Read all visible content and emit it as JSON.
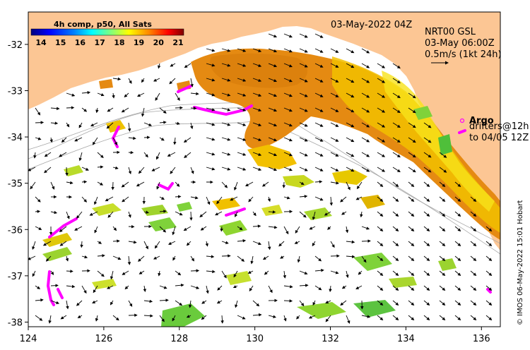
{
  "map": {
    "date_label": "03-May-2022 04Z",
    "current_product": "NRT00 GSL",
    "current_time": "03-May 06:00Z",
    "vector_scale_label": "0.5m/s (1kt 24h)",
    "argo_label": "Argo",
    "drifters_label_1": "drifters@12h",
    "drifters_label_2": "to 04/05 12Z",
    "credit": "© IMOS 06-May-2022 15:01 Hobart"
  },
  "colorbar": {
    "title": "4h comp, p50, All Sats",
    "ticks": [
      "14",
      "15",
      "16",
      "17",
      "18",
      "19",
      "20",
      "21"
    ],
    "range": [
      14,
      21
    ],
    "colors": [
      "#00007f",
      "#0000ff",
      "#007fff",
      "#00ffff",
      "#7fff7f",
      "#ffff00",
      "#ff7f00",
      "#ff0000",
      "#7f0000"
    ]
  },
  "axes": {
    "lon_ticks": [
      "124",
      "126",
      "128",
      "130",
      "132",
      "134",
      "136"
    ],
    "lat_ticks": [
      "-32",
      "-33",
      "-34",
      "-35",
      "-36",
      "-37",
      "-38"
    ],
    "lon_range": [
      124,
      136.5
    ],
    "lat_range": [
      -38.1,
      -31.3
    ]
  },
  "colors": {
    "land": "#fcc694",
    "ocean": "#ffffff",
    "warm_sst": "#e58a12",
    "mid_sst": "#f2c000",
    "cool_sst": "#7fd23a",
    "drifter": "#ff00ff"
  }
}
